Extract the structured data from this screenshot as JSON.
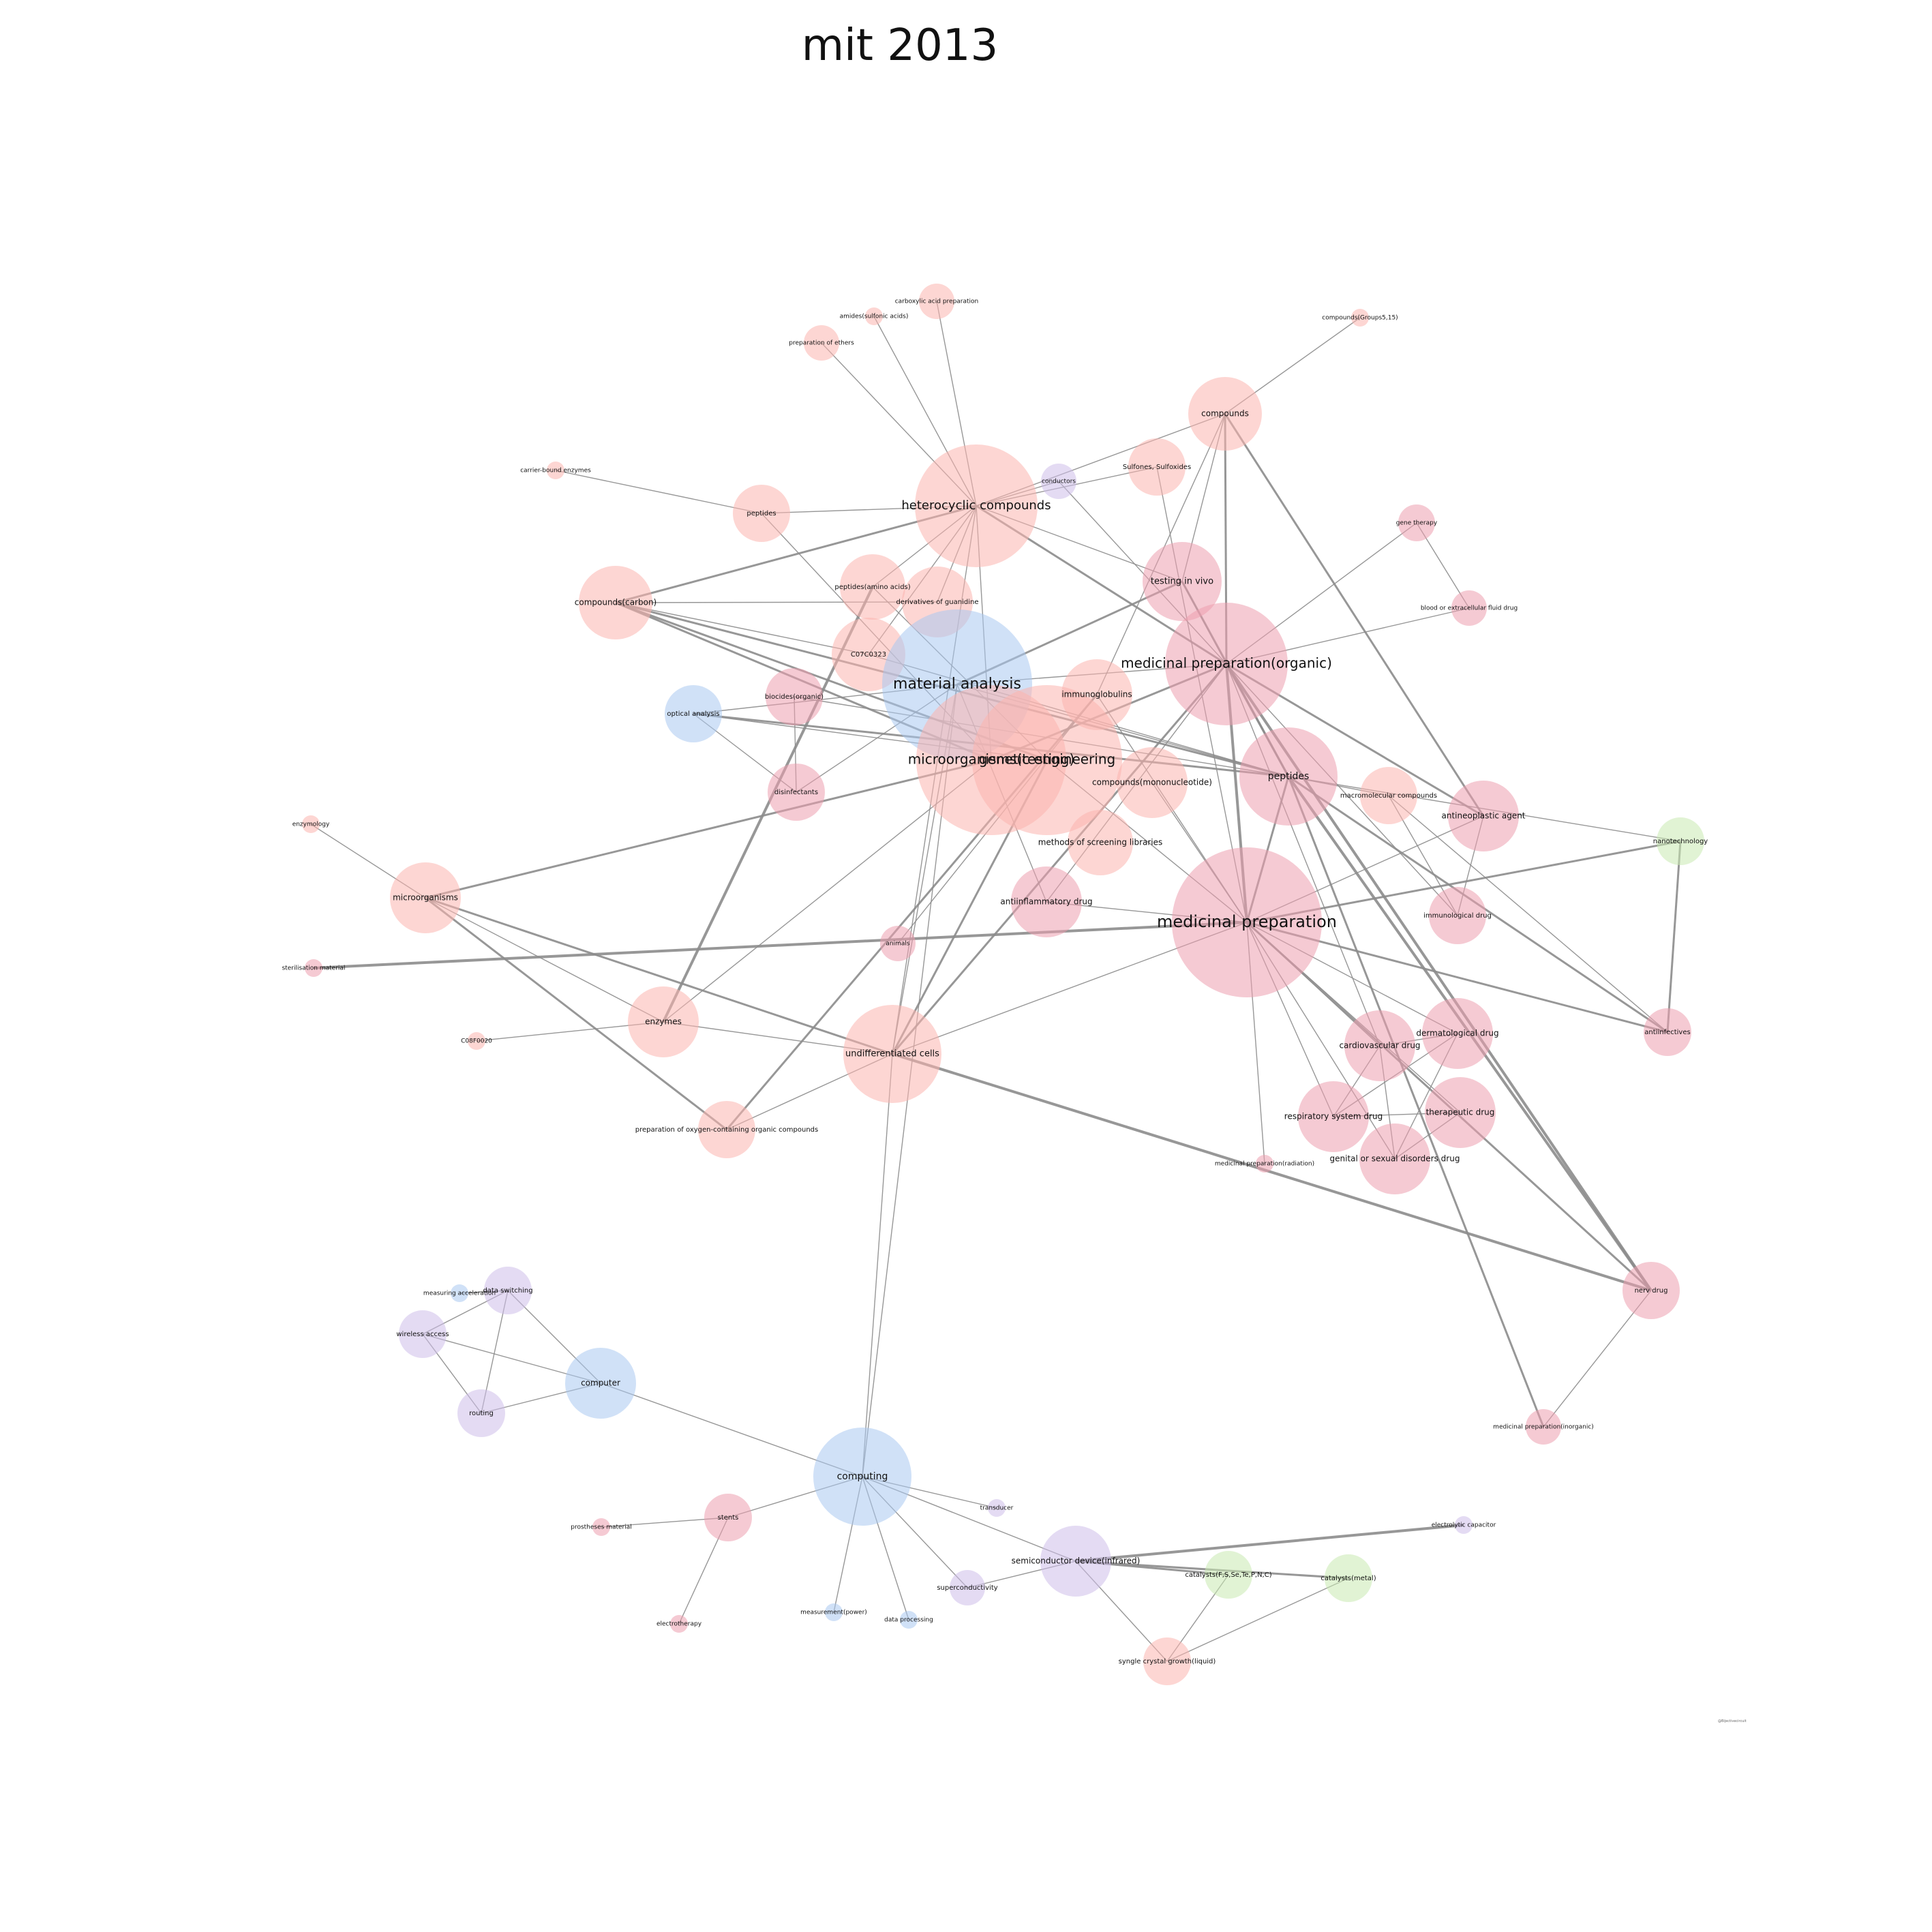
{
  "title": "mit 2013",
  "credit": "@Bijectivecircuit",
  "palette": {
    "salmon": "#fbb4ae",
    "pink": "#ec9fae",
    "blue": "#aac8f0",
    "lavender": "#cdbde9",
    "green": "#c8e9b0",
    "edge": "#8c8c8c"
  },
  "nodes": [
    {
      "id": "carboxylic",
      "label": "carboxylic acid preparation",
      "color": "salmon",
      "size": 1
    },
    {
      "id": "amides",
      "label": "amides(sulfonic acids)",
      "color": "salmon",
      "size": 1
    },
    {
      "id": "ethers",
      "label": "preparation of ethers",
      "color": "salmon",
      "size": 1
    },
    {
      "id": "compounds515",
      "label": "compounds(Groups5,15)",
      "color": "salmon",
      "size": 1
    },
    {
      "id": "compounds",
      "label": "compounds",
      "color": "salmon",
      "size": 3
    },
    {
      "id": "carrierenz",
      "label": "carrier-bound enzymes",
      "color": "salmon",
      "size": 1
    },
    {
      "id": "conductors",
      "label": "conductors",
      "color": "lavender",
      "size": 1
    },
    {
      "id": "sulfones",
      "label": "Sulfones, Sulfoxides",
      "color": "salmon",
      "size": 2
    },
    {
      "id": "peptides1",
      "label": "peptides",
      "color": "salmon",
      "size": 2
    },
    {
      "id": "heterocyclic",
      "label": "heterocyclic compounds",
      "color": "salmon",
      "size": 5
    },
    {
      "id": "genetherapy",
      "label": "gene therapy",
      "color": "pink",
      "size": 1
    },
    {
      "id": "testinvivo",
      "label": "testing in vivo",
      "color": "pink",
      "size": 3
    },
    {
      "id": "peptidesaa",
      "label": "peptides(amino acids)",
      "color": "salmon",
      "size": 2
    },
    {
      "id": "guanidine",
      "label": "derivatives of guanidine",
      "color": "salmon",
      "size": 2
    },
    {
      "id": "compcarbon",
      "label": "compounds(carbon)",
      "color": "salmon",
      "size": 3
    },
    {
      "id": "bloodfluid",
      "label": "blood or extracellular fluid drug",
      "color": "pink",
      "size": 1
    },
    {
      "id": "c07c0323",
      "label": "C07C0323",
      "color": "salmon",
      "size": 2
    },
    {
      "id": "medorganic",
      "label": "medicinal preparation(organic)",
      "color": "pink",
      "size": 5
    },
    {
      "id": "matanalysis",
      "label": "material analysis",
      "color": "blue",
      "size": 6
    },
    {
      "id": "immunoglob",
      "label": "immunoglobulins",
      "color": "salmon",
      "size": 3
    },
    {
      "id": "biocides",
      "label": "biocides(organic)",
      "color": "pink",
      "size": 2
    },
    {
      "id": "optical",
      "label": "optical analysis",
      "color": "blue",
      "size": 2
    },
    {
      "id": "microtest",
      "label": "microorganisms(testing)",
      "color": "salmon",
      "size": 6
    },
    {
      "id": "geneng",
      "label": "genetic engineering",
      "color": "salmon",
      "size": 6
    },
    {
      "id": "peptides2",
      "label": "peptides",
      "color": "pink",
      "size": 4
    },
    {
      "id": "compmono",
      "label": "compounds(mononucleotide)",
      "color": "salmon",
      "size": 3
    },
    {
      "id": "macromol",
      "label": "macromolecular compounds",
      "color": "salmon",
      "size": 2
    },
    {
      "id": "disinfect",
      "label": "disinfectants",
      "color": "pink",
      "size": 2
    },
    {
      "id": "antineo",
      "label": "antineoplastic agent",
      "color": "pink",
      "size": 3
    },
    {
      "id": "nanotech",
      "label": "nanotechnology",
      "color": "green",
      "size": 2
    },
    {
      "id": "enzymology",
      "label": "enzymology",
      "color": "salmon",
      "size": 1
    },
    {
      "id": "screening",
      "label": "methods of screening libraries",
      "color": "salmon",
      "size": 3
    },
    {
      "id": "microorg",
      "label": "microorganisms",
      "color": "salmon",
      "size": 3
    },
    {
      "id": "antiinflam",
      "label": "antiinflammatory drug",
      "color": "pink",
      "size": 3
    },
    {
      "id": "medprep",
      "label": "medicinal preparation",
      "color": "pink",
      "size": 6
    },
    {
      "id": "immunodrug",
      "label": "immunological drug",
      "color": "pink",
      "size": 2
    },
    {
      "id": "animals",
      "label": "animals",
      "color": "pink",
      "size": 1
    },
    {
      "id": "sterilisation",
      "label": "sterilisation material",
      "color": "pink",
      "size": 1
    },
    {
      "id": "antiinfect",
      "label": "antiinfectives",
      "color": "pink",
      "size": 2
    },
    {
      "id": "enzymes",
      "label": "enzymes",
      "color": "salmon",
      "size": 3
    },
    {
      "id": "c08f",
      "label": "C08F0020",
      "color": "salmon",
      "size": 1
    },
    {
      "id": "undiff",
      "label": "undifferentiated cells",
      "color": "salmon",
      "size": 4
    },
    {
      "id": "cardio",
      "label": "cardiovascular drug",
      "color": "pink",
      "size": 3
    },
    {
      "id": "derma",
      "label": "dermatological drug",
      "color": "pink",
      "size": 3
    },
    {
      "id": "resp",
      "label": "respiratory system drug",
      "color": "pink",
      "size": 3
    },
    {
      "id": "therapeutic",
      "label": "therapeutic drug",
      "color": "pink",
      "size": 3
    },
    {
      "id": "oxygenorg",
      "label": "preparation of oxygen-containing organic compounds",
      "color": "salmon",
      "size": 2
    },
    {
      "id": "genital",
      "label": "genital or sexual disorders drug",
      "color": "pink",
      "size": 3
    },
    {
      "id": "medradiation",
      "label": "medicinal preparation(radiation)",
      "color": "pink",
      "size": 1
    },
    {
      "id": "nervdrug",
      "label": "nerv drug",
      "color": "pink",
      "size": 2
    },
    {
      "id": "measaccel",
      "label": "measuring acceleration",
      "color": "blue",
      "size": 1
    },
    {
      "id": "dataswitch",
      "label": "data switching",
      "color": "lavender",
      "size": 2
    },
    {
      "id": "wireless",
      "label": "wireless access",
      "color": "lavender",
      "size": 2
    },
    {
      "id": "computer",
      "label": "computer",
      "color": "blue",
      "size": 3
    },
    {
      "id": "routing",
      "label": "routing",
      "color": "lavender",
      "size": 2
    },
    {
      "id": "medinorganic",
      "label": "medicinal preparation(inorganic)",
      "color": "pink",
      "size": 1
    },
    {
      "id": "computing",
      "label": "computing",
      "color": "blue",
      "size": 4
    },
    {
      "id": "transducer",
      "label": "transducer",
      "color": "lavender",
      "size": 1
    },
    {
      "id": "stents",
      "label": "stents",
      "color": "pink",
      "size": 2
    },
    {
      "id": "prostheses",
      "label": "prostheses material",
      "color": "pink",
      "size": 1
    },
    {
      "id": "electrolytic",
      "label": "electrolytic capacitor",
      "color": "lavender",
      "size": 1
    },
    {
      "id": "semidev",
      "label": "semiconductor device(infrared)",
      "color": "lavender",
      "size": 3
    },
    {
      "id": "catalysts1",
      "label": "catalysts(F,S,Se,Te,P,N,C)",
      "color": "green",
      "size": 2
    },
    {
      "id": "catalystsmetal",
      "label": "catalysts(metal)",
      "color": "green",
      "size": 2
    },
    {
      "id": "supercond",
      "label": "superconductivity",
      "color": "lavender",
      "size": 2
    },
    {
      "id": "measpower",
      "label": "measurement(power)",
      "color": "blue",
      "size": 1
    },
    {
      "id": "dataproc",
      "label": "data processing",
      "color": "blue",
      "size": 1
    },
    {
      "id": "electrotherapy",
      "label": "electrotherapy",
      "color": "pink",
      "size": 1
    },
    {
      "id": "syngle",
      "label": "syngle crystal growth(liquid)",
      "color": "salmon",
      "size": 2
    }
  ],
  "edges": [
    [
      "carboxylic",
      "heterocyclic",
      1
    ],
    [
      "amides",
      "heterocyclic",
      1
    ],
    [
      "ethers",
      "heterocyclic",
      1
    ],
    [
      "compounds515",
      "compounds",
      1
    ],
    [
      "compounds",
      "heterocyclic",
      1
    ],
    [
      "compounds",
      "medorganic",
      2
    ],
    [
      "compounds",
      "antineo",
      2
    ],
    [
      "compounds",
      "testinvivo",
      1
    ],
    [
      "compounds",
      "immunoglob",
      1
    ],
    [
      "carrierenz",
      "peptides1",
      1
    ],
    [
      "peptides1",
      "heterocyclic",
      1
    ],
    [
      "peptides1",
      "microtest",
      1
    ],
    [
      "conductors",
      "heterocyclic",
      1
    ],
    [
      "conductors",
      "medorganic",
      1
    ],
    [
      "sulfones",
      "heterocyclic",
      1
    ],
    [
      "sulfones",
      "medprep",
      1
    ],
    [
      "heterocyclic",
      "compcarbon",
      2
    ],
    [
      "heterocyclic",
      "medorganic",
      2
    ],
    [
      "heterocyclic",
      "microtest",
      1
    ],
    [
      "heterocyclic",
      "testinvivo",
      1
    ],
    [
      "heterocyclic",
      "undiff",
      1
    ],
    [
      "heterocyclic",
      "c07c0323",
      1
    ],
    [
      "heterocyclic",
      "guanidine",
      1
    ],
    [
      "heterocyclic",
      "peptidesaa",
      1
    ],
    [
      "genetherapy",
      "medorganic",
      1
    ],
    [
      "genetherapy",
      "bloodfluid",
      1
    ],
    [
      "bloodfluid",
      "medorganic",
      1
    ],
    [
      "testinvivo",
      "medorganic",
      1
    ],
    [
      "testinvivo",
      "matanalysis",
      2
    ],
    [
      "testinvivo",
      "peptides2",
      2
    ],
    [
      "peptidesaa",
      "enzymes",
      3
    ],
    [
      "peptidesaa",
      "geneng",
      1
    ],
    [
      "guanidine",
      "compcarbon",
      1
    ],
    [
      "compcarbon",
      "microtest",
      2
    ],
    [
      "compcarbon",
      "geneng",
      2
    ],
    [
      "compcarbon",
      "peptides2",
      2
    ],
    [
      "compcarbon",
      "c07c0323",
      1
    ],
    [
      "c07c0323",
      "peptides2",
      1
    ],
    [
      "medorganic",
      "matanalysis",
      1
    ],
    [
      "medorganic",
      "medprep",
      3
    ],
    [
      "medorganic",
      "peptides2",
      2
    ],
    [
      "medorganic",
      "antineo",
      2
    ],
    [
      "medorganic",
      "nervdrug",
      3
    ],
    [
      "medorganic",
      "undiff",
      2
    ],
    [
      "medorganic",
      "microtest",
      2
    ],
    [
      "medorganic",
      "cardio",
      1
    ],
    [
      "medorganic",
      "immunodrug",
      1
    ],
    [
      "medorganic",
      "antiinflam",
      1
    ],
    [
      "matanalysis",
      "optical",
      1
    ],
    [
      "matanalysis",
      "computing",
      1
    ],
    [
      "matanalysis",
      "undiff",
      1
    ],
    [
      "matanalysis",
      "antiinflam",
      1
    ],
    [
      "matanalysis",
      "peptides2",
      1
    ],
    [
      "matanalysis",
      "disinfect",
      1
    ],
    [
      "immunoglob",
      "medprep",
      1
    ],
    [
      "immunoglob",
      "animals",
      1
    ],
    [
      "immunoglob",
      "oxygenorg",
      2
    ],
    [
      "optical",
      "peptides2",
      2
    ],
    [
      "optical",
      "disinfect",
      1
    ],
    [
      "optical",
      "geneng",
      1
    ],
    [
      "biocides",
      "disinfect",
      1
    ],
    [
      "biocides",
      "peptides2",
      1
    ],
    [
      "microtest",
      "microorg",
      2
    ],
    [
      "microtest",
      "enzymes",
      1
    ],
    [
      "geneng",
      "medprep",
      1
    ],
    [
      "geneng",
      "undiff",
      2
    ],
    [
      "peptides2",
      "medprep",
      2
    ],
    [
      "peptides2",
      "antiinfect",
      2
    ],
    [
      "peptides2",
      "nervdrug",
      3
    ],
    [
      "peptides2",
      "medinorganic",
      2
    ],
    [
      "peptides2",
      "nanotech",
      1
    ],
    [
      "peptides2",
      "macromol",
      1
    ],
    [
      "compmono",
      "medprep",
      1
    ],
    [
      "macromol",
      "immunodrug",
      1
    ],
    [
      "antineo",
      "immunodrug",
      1
    ],
    [
      "antineo",
      "medprep",
      1
    ],
    [
      "nanotech",
      "medprep",
      2
    ],
    [
      "nanotech",
      "antiinfect",
      2
    ],
    [
      "enzymology",
      "microorg",
      1
    ],
    [
      "microorg",
      "undiff",
      2
    ],
    [
      "microorg",
      "oxygenorg",
      2
    ],
    [
      "microorg",
      "enzymes",
      1
    ],
    [
      "medprep",
      "sterilisation",
      3
    ],
    [
      "medprep",
      "antiinfect",
      2
    ],
    [
      "medprep",
      "nervdrug",
      2
    ],
    [
      "medprep",
      "cardio",
      1
    ],
    [
      "medprep",
      "derma",
      1
    ],
    [
      "medprep",
      "resp",
      1
    ],
    [
      "medprep",
      "genital",
      1
    ],
    [
      "medprep",
      "therapeutic",
      1
    ],
    [
      "medprep",
      "medradiation",
      1
    ],
    [
      "medprep",
      "undiff",
      1
    ],
    [
      "medprep",
      "antiinflam",
      1
    ],
    [
      "cardio",
      "derma",
      1
    ],
    [
      "cardio",
      "genital",
      1
    ],
    [
      "cardio",
      "resp",
      1
    ],
    [
      "derma",
      "resp",
      1
    ],
    [
      "derma",
      "genital",
      1
    ],
    [
      "therapeutic",
      "resp",
      1
    ],
    [
      "therapeutic",
      "genital",
      1
    ],
    [
      "antiinfect",
      "macromol",
      1
    ],
    [
      "undiff",
      "nervdrug",
      3
    ],
    [
      "undiff",
      "enzymes",
      1
    ],
    [
      "undiff",
      "oxygenorg",
      1
    ],
    [
      "c08f",
      "enzymes",
      1
    ],
    [
      "nervdrug",
      "medinorganic",
      1
    ],
    [
      "undiff",
      "computing",
      1
    ],
    [
      "measaccel",
      "dataswitch",
      1
    ],
    [
      "dataswitch",
      "wireless",
      1
    ],
    [
      "dataswitch",
      "routing",
      1
    ],
    [
      "dataswitch",
      "computer",
      1
    ],
    [
      "wireless",
      "computer",
      1
    ],
    [
      "wireless",
      "routing",
      1
    ],
    [
      "routing",
      "computer",
      1
    ],
    [
      "computer",
      "computing",
      1
    ],
    [
      "computing",
      "transducer",
      1
    ],
    [
      "computing",
      "stents",
      1
    ],
    [
      "computing",
      "semidev",
      1
    ],
    [
      "computing",
      "supercond",
      1
    ],
    [
      "computing",
      "measpower",
      1
    ],
    [
      "computing",
      "dataproc",
      1
    ],
    [
      "stents",
      "prostheses",
      1
    ],
    [
      "stents",
      "electrotherapy",
      1
    ],
    [
      "semidev",
      "electrolytic",
      3
    ],
    [
      "semidev",
      "catalysts1",
      2
    ],
    [
      "semidev",
      "catalystsmetal",
      2
    ],
    [
      "semidev",
      "supercond",
      1
    ],
    [
      "semidev",
      "syngle",
      1
    ],
    [
      "catalysts1",
      "syngle",
      1
    ],
    [
      "catalystsmetal",
      "syngle",
      1
    ]
  ]
}
